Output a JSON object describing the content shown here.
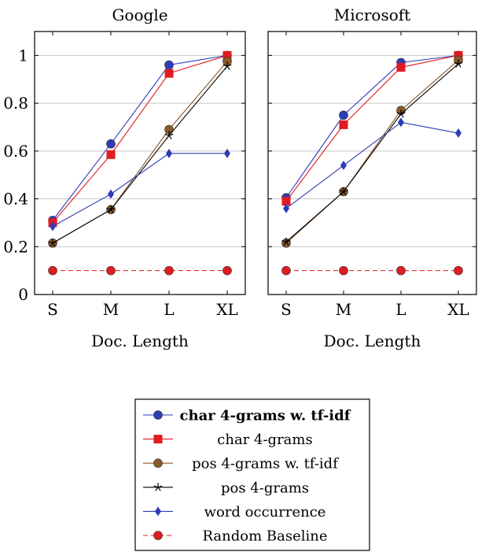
{
  "chart_data": [
    {
      "type": "line",
      "title": "Google",
      "xlabel": "Doc. Length",
      "ylabel": "",
      "categories": [
        "S",
        "M",
        "L",
        "XL"
      ],
      "ylim": [
        0,
        1.1
      ],
      "yticks": [
        0,
        0.2,
        0.4,
        0.6,
        0.8,
        1
      ],
      "ytick_labels": [
        "0",
        "0.2",
        "0.4",
        "0.6",
        "0.8",
        "1"
      ],
      "grid": "horizontal",
      "series": [
        {
          "name": "char 4-grams w. tf-idf",
          "values": [
            0.31,
            0.63,
            0.96,
            1.0
          ],
          "color": "#2e3cb4",
          "marker": "circle",
          "dash": "solid"
        },
        {
          "name": "char 4-grams",
          "values": [
            0.3,
            0.585,
            0.925,
            1.0
          ],
          "color": "#e01b22",
          "marker": "square",
          "dash": "solid"
        },
        {
          "name": "pos 4-grams w. tf-idf",
          "values": [
            0.215,
            0.355,
            0.69,
            0.975
          ],
          "color": "#8b5a2b",
          "marker": "circle",
          "dash": "solid"
        },
        {
          "name": "pos 4-grams",
          "values": [
            0.215,
            0.355,
            0.665,
            0.955
          ],
          "color": "#000000",
          "marker": "star",
          "dash": "solid"
        },
        {
          "name": "word occurrence",
          "values": [
            0.285,
            0.42,
            0.59,
            0.59
          ],
          "color": "#2e3cb4",
          "marker": "diamond",
          "dash": "solid"
        },
        {
          "name": "Random Baseline",
          "values": [
            0.1,
            0.1,
            0.1,
            0.1
          ],
          "color": "#e01b22",
          "marker": "circle",
          "dash": "dashed"
        }
      ]
    },
    {
      "type": "line",
      "title": "Microsoft",
      "xlabel": "Doc. Length",
      "ylabel": "",
      "categories": [
        "S",
        "M",
        "L",
        "XL"
      ],
      "ylim": [
        0,
        1.1
      ],
      "yticks": [
        0,
        0.2,
        0.4,
        0.6,
        0.8,
        1
      ],
      "grid": "horizontal",
      "series": [
        {
          "name": "char 4-grams w. tf-idf",
          "values": [
            0.405,
            0.75,
            0.97,
            1.0
          ],
          "color": "#2e3cb4",
          "marker": "circle",
          "dash": "solid"
        },
        {
          "name": "char 4-grams",
          "values": [
            0.39,
            0.71,
            0.95,
            1.0
          ],
          "color": "#e01b22",
          "marker": "square",
          "dash": "solid"
        },
        {
          "name": "pos 4-grams w. tf-idf",
          "values": [
            0.215,
            0.43,
            0.77,
            0.98
          ],
          "color": "#8b5a2b",
          "marker": "circle",
          "dash": "solid"
        },
        {
          "name": "pos 4-grams",
          "values": [
            0.22,
            0.43,
            0.755,
            0.965
          ],
          "color": "#000000",
          "marker": "star",
          "dash": "solid"
        },
        {
          "name": "word occurrence",
          "values": [
            0.36,
            0.54,
            0.72,
            0.675
          ],
          "color": "#2e3cb4",
          "marker": "diamond",
          "dash": "solid"
        },
        {
          "name": "Random Baseline",
          "values": [
            0.1,
            0.1,
            0.1,
            0.1
          ],
          "color": "#e01b22",
          "marker": "circle",
          "dash": "dashed"
        }
      ]
    }
  ],
  "legend": {
    "placement": "bottom-center",
    "entries": [
      {
        "label": "char 4-grams w. tf-idf",
        "bold": true
      },
      {
        "label": "char 4-grams",
        "bold": false
      },
      {
        "label": "pos 4-grams w. tf-idf",
        "bold": false
      },
      {
        "label": "pos 4-grams",
        "bold": false
      },
      {
        "label": "word occurrence",
        "bold": false
      },
      {
        "label": "Random Baseline",
        "bold": false
      }
    ]
  }
}
